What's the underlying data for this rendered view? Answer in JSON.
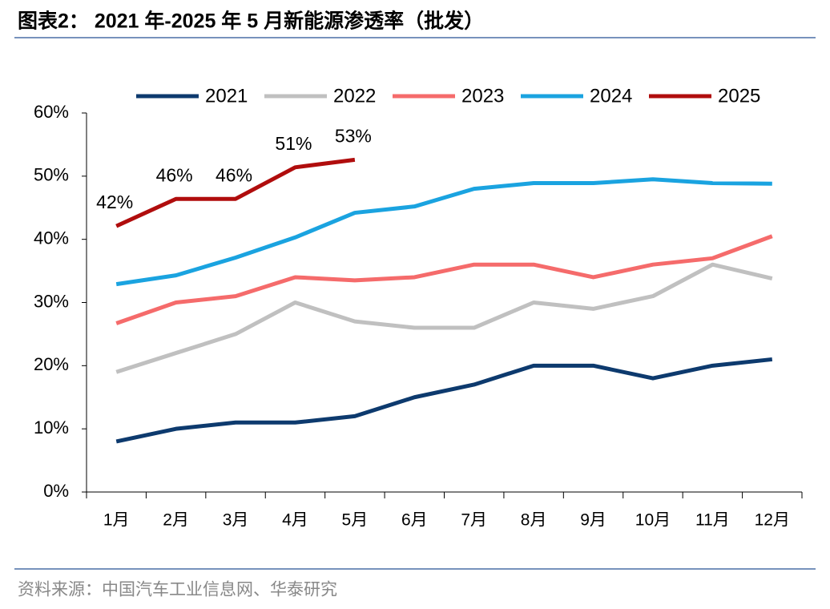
{
  "chart_data": {
    "type": "line",
    "title": "图表2： 2021 年-2025 年 5 月新能源渗透率（批发）",
    "source": "资料来源：中国汽车工业信息网、华泰研究",
    "categories": [
      "1月",
      "2月",
      "3月",
      "4月",
      "5月",
      "6月",
      "7月",
      "8月",
      "9月",
      "10月",
      "11月",
      "12月"
    ],
    "series": [
      {
        "name": "2021",
        "color": "#0d3a6e",
        "values": [
          8,
          10,
          11,
          11,
          12,
          15,
          17,
          20,
          20,
          18,
          20,
          21
        ]
      },
      {
        "name": "2022",
        "color": "#c0c0c0",
        "values": [
          19,
          22,
          25,
          30,
          27,
          26,
          26,
          30,
          29,
          31,
          36,
          33.8
        ]
      },
      {
        "name": "2023",
        "color": "#f56b6b",
        "values": [
          26.7,
          30,
          31,
          34,
          33.5,
          34,
          36,
          36,
          34,
          36,
          37,
          40.5
        ]
      },
      {
        "name": "2024",
        "color": "#1aa3e0",
        "values": [
          32.9,
          34.3,
          37.1,
          40.3,
          44.2,
          45.2,
          48,
          48.9,
          48.9,
          49.5,
          48.9,
          48.8
        ]
      },
      {
        "name": "2025",
        "color": "#b00d0d",
        "values": [
          42.1,
          46.4,
          46.4,
          51.4,
          52.6,
          null,
          null,
          null,
          null,
          null,
          null,
          null
        ],
        "value_labels": [
          "42%",
          "46%",
          "46%",
          "51%",
          "53%",
          null,
          null,
          null,
          null,
          null,
          null,
          null
        ]
      }
    ],
    "ylim": [
      0,
      60
    ],
    "yticks": [
      {
        "value": 0,
        "label": "0%"
      },
      {
        "value": 10,
        "label": "10%"
      },
      {
        "value": 20,
        "label": "20%"
      },
      {
        "value": 30,
        "label": "30%"
      },
      {
        "value": 40,
        "label": "40%"
      },
      {
        "value": 50,
        "label": "50%"
      },
      {
        "value": 60,
        "label": "60%"
      }
    ],
    "legend": "top"
  }
}
